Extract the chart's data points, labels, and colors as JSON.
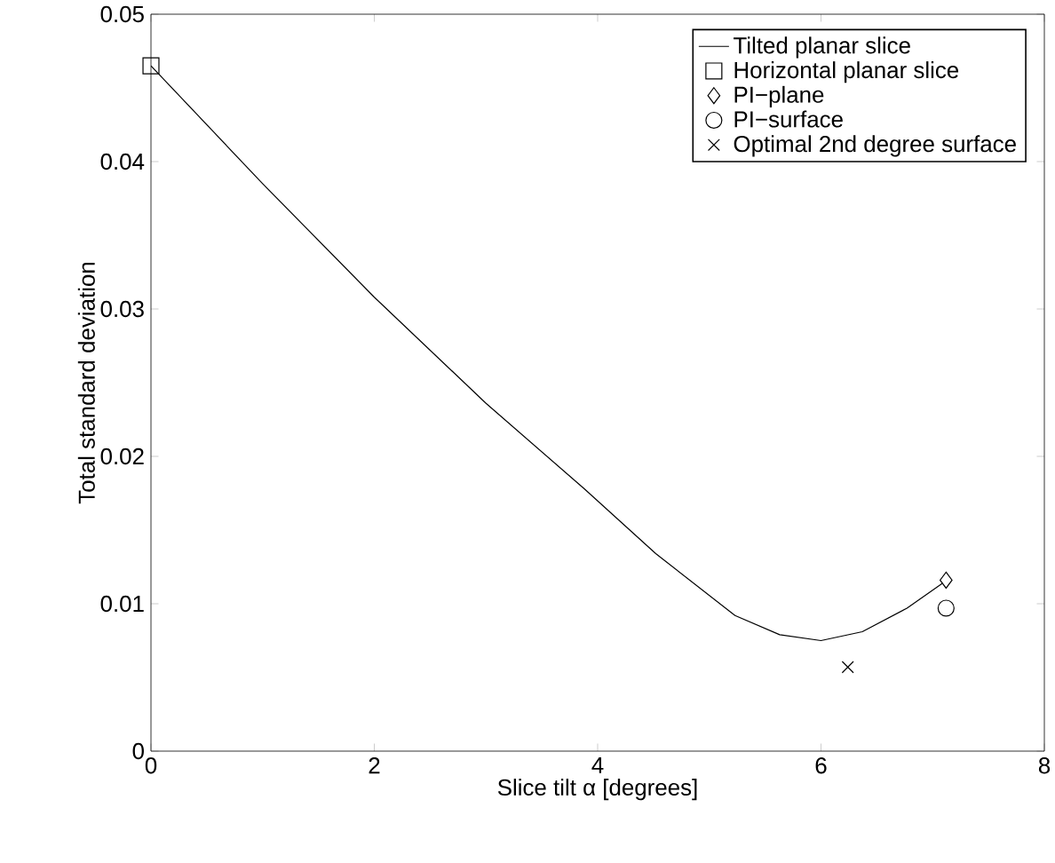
{
  "chart_data": {
    "type": "line",
    "xlabel": "Slice tilt α [degrees]",
    "ylabel": "Total standard deviation",
    "xlim": [
      0,
      8
    ],
    "ylim": [
      0,
      0.05
    ],
    "xticks": [
      0,
      2,
      4,
      6,
      8
    ],
    "yticks": [
      0,
      0.01,
      0.02,
      0.03,
      0.04,
      0.05
    ],
    "legend": "top right",
    "grid": false,
    "series": [
      {
        "name": "Tilted planar slice",
        "color": "#000000",
        "marker": "none",
        "line_style": "solid",
        "x": [
          0,
          1,
          2,
          3,
          3.88,
          4.52,
          5.23,
          5.63,
          6.0,
          6.37,
          6.77,
          7.09
        ],
        "values": [
          0.0465,
          0.0385,
          0.0308,
          0.0236,
          0.0178,
          0.0134,
          0.0092,
          0.0079,
          0.0075,
          0.0081,
          0.0097,
          0.0114
        ]
      },
      {
        "name": "Horizontal planar slice",
        "type": "scatter",
        "color": "#000000",
        "marker": "square",
        "x": [
          0
        ],
        "values": [
          0.0465
        ]
      },
      {
        "name": "PI−plane",
        "type": "scatter",
        "color": "#000000",
        "marker": "diamond",
        "x": [
          7.12
        ],
        "values": [
          0.0116
        ]
      },
      {
        "name": "PI−surface",
        "type": "scatter",
        "color": "#000000",
        "marker": "circle",
        "x": [
          7.12
        ],
        "values": [
          0.0097
        ]
      },
      {
        "name": "Optimal 2nd degree surface",
        "type": "scatter",
        "color": "#000000",
        "marker": "cross",
        "x": [
          6.24
        ],
        "values": [
          0.0057
        ]
      }
    ]
  }
}
